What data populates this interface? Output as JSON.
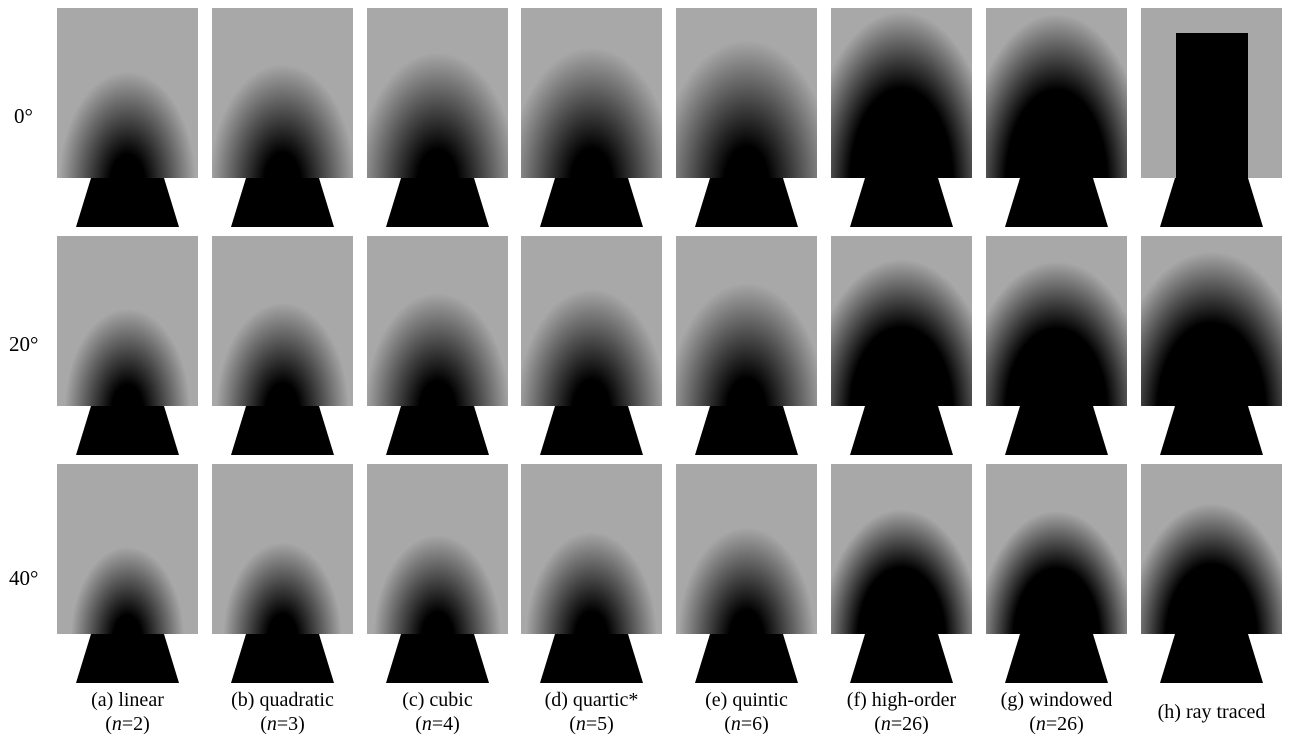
{
  "figure": {
    "row_labels": [
      "0°",
      "20°",
      "40°"
    ],
    "columns": [
      {
        "letter": "(a)",
        "method": "linear",
        "order": "2"
      },
      {
        "letter": "(b)",
        "method": "quadratic",
        "order": "3"
      },
      {
        "letter": "(c)",
        "method": "cubic",
        "order": "4"
      },
      {
        "letter": "(d)",
        "method": "quartic*",
        "order": "5"
      },
      {
        "letter": "(e)",
        "method": "quintic",
        "order": "6"
      },
      {
        "letter": "(f)",
        "method": "high-order",
        "order": "26"
      },
      {
        "letter": "(g)",
        "method": "windowed",
        "order": "26"
      },
      {
        "letter": "(h)",
        "method": "ray traced",
        "order": ""
      }
    ],
    "colors": {
      "background": "#ffffff",
      "shadow_gray": "#a8a8a8",
      "occluder": "#000000"
    }
  }
}
